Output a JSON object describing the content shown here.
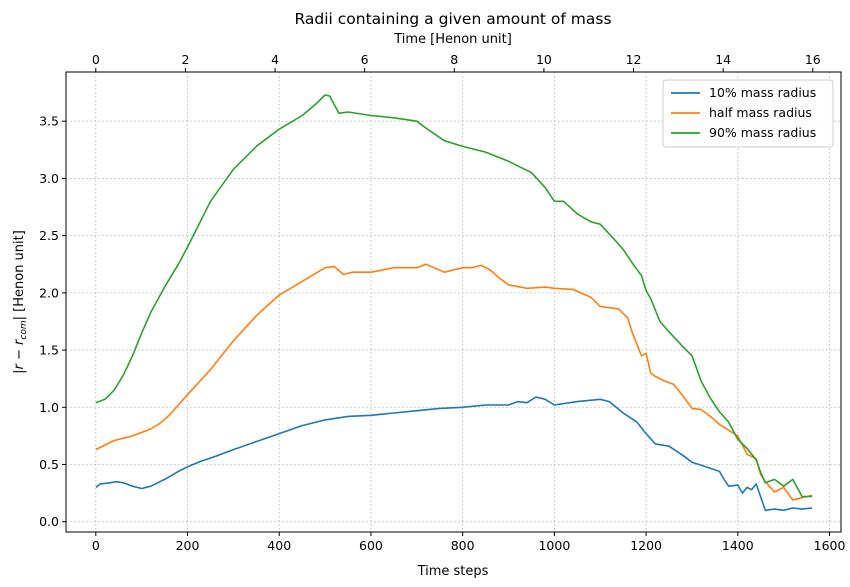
{
  "chart_data": {
    "type": "line",
    "title": "Radii containing a given amount of mass",
    "xlabel": "Time steps",
    "ylabel": "|r − r_com| [Henon unit]",
    "ylabel_main": "|r − r",
    "ylabel_sub": "com",
    "ylabel_rest": "| [Henon unit]",
    "x2label": "Time [Henon unit]",
    "xlim": [
      -65,
      1625
    ],
    "ylim": [
      -0.09,
      3.93
    ],
    "x2lim": [
      -0.665,
      16.63
    ],
    "xticks": [
      0,
      200,
      400,
      600,
      800,
      1000,
      1200,
      1400,
      1600
    ],
    "xtick_labels": [
      "0",
      "200",
      "400",
      "600",
      "800",
      "1000",
      "1200",
      "1400",
      "1600"
    ],
    "yticks": [
      0.0,
      0.5,
      1.0,
      1.5,
      2.0,
      2.5,
      3.0,
      3.5
    ],
    "ytick_labels": [
      "0.0",
      "0.5",
      "1.0",
      "1.5",
      "2.0",
      "2.5",
      "3.0",
      "3.5"
    ],
    "x2ticks": [
      0,
      2,
      4,
      6,
      8,
      10,
      12,
      14,
      16
    ],
    "x2tick_labels": [
      "0",
      "2",
      "4",
      "6",
      "8",
      "10",
      "12",
      "14",
      "16"
    ],
    "grid": true,
    "legend_position": "top-right",
    "series": [
      {
        "name": "10% mass radius",
        "color": "#1f77b4",
        "x": [
          0,
          10,
          30,
          45,
          60,
          80,
          100,
          120,
          150,
          180,
          200,
          230,
          260,
          300,
          350,
          400,
          450,
          500,
          550,
          600,
          650,
          700,
          750,
          800,
          850,
          900,
          920,
          940,
          960,
          980,
          1000,
          1050,
          1100,
          1120,
          1150,
          1180,
          1200,
          1220,
          1250,
          1280,
          1300,
          1330,
          1360,
          1370,
          1380,
          1400,
          1410,
          1420,
          1430,
          1440,
          1460,
          1480,
          1500,
          1520,
          1540,
          1562
        ],
        "y": [
          0.3,
          0.33,
          0.34,
          0.35,
          0.34,
          0.31,
          0.29,
          0.31,
          0.37,
          0.44,
          0.48,
          0.53,
          0.57,
          0.63,
          0.7,
          0.77,
          0.84,
          0.89,
          0.92,
          0.93,
          0.95,
          0.97,
          0.99,
          1.0,
          1.02,
          1.02,
          1.05,
          1.04,
          1.09,
          1.07,
          1.02,
          1.05,
          1.07,
          1.05,
          0.95,
          0.87,
          0.77,
          0.68,
          0.66,
          0.58,
          0.52,
          0.48,
          0.44,
          0.37,
          0.31,
          0.32,
          0.25,
          0.3,
          0.28,
          0.33,
          0.1,
          0.11,
          0.1,
          0.12,
          0.11,
          0.12
        ]
      },
      {
        "name": "half mass radius",
        "color": "#ff7f0e",
        "x": [
          0,
          20,
          40,
          60,
          80,
          100,
          120,
          140,
          160,
          180,
          200,
          250,
          300,
          350,
          400,
          450,
          500,
          520,
          540,
          560,
          600,
          650,
          700,
          720,
          760,
          800,
          820,
          840,
          860,
          880,
          900,
          940,
          980,
          1000,
          1040,
          1080,
          1100,
          1140,
          1160,
          1170,
          1180,
          1190,
          1200,
          1210,
          1220,
          1240,
          1260,
          1280,
          1300,
          1320,
          1340,
          1360,
          1380,
          1400,
          1420,
          1440,
          1450,
          1460,
          1480,
          1500,
          1520,
          1540,
          1562
        ],
        "y": [
          0.63,
          0.67,
          0.71,
          0.73,
          0.75,
          0.78,
          0.81,
          0.86,
          0.93,
          1.02,
          1.11,
          1.33,
          1.58,
          1.8,
          1.98,
          2.1,
          2.22,
          2.23,
          2.16,
          2.18,
          2.18,
          2.22,
          2.22,
          2.25,
          2.18,
          2.22,
          2.22,
          2.24,
          2.2,
          2.13,
          2.07,
          2.04,
          2.05,
          2.04,
          2.03,
          1.96,
          1.88,
          1.86,
          1.78,
          1.65,
          1.55,
          1.45,
          1.47,
          1.3,
          1.27,
          1.23,
          1.2,
          1.1,
          0.99,
          0.98,
          0.92,
          0.85,
          0.8,
          0.75,
          0.59,
          0.55,
          0.41,
          0.35,
          0.26,
          0.3,
          0.19,
          0.21,
          0.23
        ]
      },
      {
        "name": "90% mass radius",
        "color": "#2ca02c",
        "x": [
          0,
          20,
          40,
          60,
          80,
          100,
          120,
          150,
          180,
          200,
          250,
          300,
          350,
          400,
          450,
          480,
          500,
          510,
          530,
          550,
          600,
          650,
          700,
          720,
          760,
          800,
          850,
          900,
          950,
          980,
          1000,
          1020,
          1050,
          1080,
          1100,
          1130,
          1150,
          1170,
          1190,
          1200,
          1210,
          1230,
          1250,
          1280,
          1300,
          1320,
          1340,
          1360,
          1380,
          1400,
          1420,
          1440,
          1450,
          1460,
          1480,
          1500,
          1520,
          1540,
          1562
        ],
        "y": [
          1.04,
          1.07,
          1.15,
          1.28,
          1.45,
          1.65,
          1.83,
          2.05,
          2.25,
          2.4,
          2.8,
          3.08,
          3.28,
          3.43,
          3.55,
          3.65,
          3.73,
          3.72,
          3.57,
          3.58,
          3.55,
          3.53,
          3.5,
          3.44,
          3.33,
          3.28,
          3.23,
          3.15,
          3.05,
          2.92,
          2.8,
          2.8,
          2.69,
          2.62,
          2.6,
          2.47,
          2.38,
          2.26,
          2.15,
          2.02,
          1.95,
          1.75,
          1.66,
          1.53,
          1.45,
          1.23,
          1.08,
          0.96,
          0.87,
          0.72,
          0.64,
          0.54,
          0.43,
          0.34,
          0.37,
          0.31,
          0.37,
          0.22,
          0.22
        ]
      }
    ]
  }
}
